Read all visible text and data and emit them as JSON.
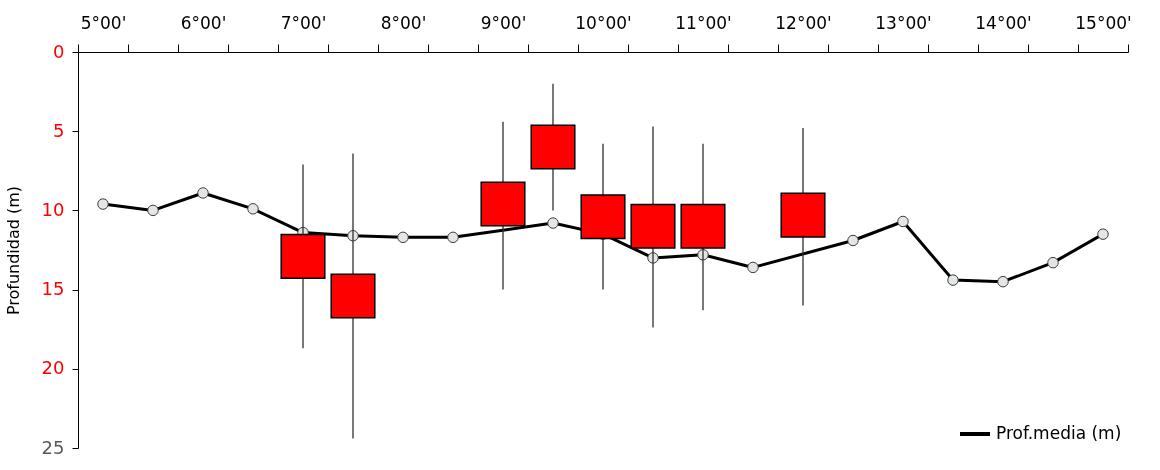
{
  "chart_data": {
    "type": "line",
    "ylabel": "Profundidad (m)",
    "categories": [
      "5°00'",
      null,
      "6°00'",
      null,
      "7°00'",
      null,
      "8°00'",
      null,
      "9°00'",
      null,
      "10°00'",
      null,
      "11°00'",
      null,
      "12°00'",
      null,
      "13°00'",
      null,
      "14°00'",
      null,
      "15°00'"
    ],
    "ylim": [
      25,
      0
    ],
    "yticks": [
      0,
      5,
      10,
      15,
      20,
      25
    ],
    "grid": false,
    "legend": "bottom right",
    "series": [
      {
        "name": "Prof.media (m)",
        "color": "#000000",
        "marker": "circle",
        "line_style": "solid",
        "values": [
          9.6,
          10.0,
          8.9,
          9.9,
          11.4,
          11.6,
          11.7,
          11.7,
          null,
          10.8,
          11.5,
          13.0,
          12.8,
          13.6,
          null,
          11.9,
          10.7,
          14.4,
          14.5,
          13.3,
          11.5
        ]
      },
      {
        "type": "scatter",
        "color": "#ff0000",
        "marker": "square",
        "values": [
          null,
          null,
          null,
          null,
          12.9,
          15.4,
          null,
          null,
          9.6,
          6.0,
          10.4,
          11.0,
          11.0,
          null,
          10.3,
          null,
          null,
          null,
          null,
          null,
          null
        ],
        "errors": [
          null,
          null,
          null,
          null,
          [
            7.1,
            18.7
          ],
          [
            6.4,
            24.4
          ],
          null,
          null,
          [
            4.4,
            15.0
          ],
          [
            2.0,
            10.0
          ],
          [
            5.8,
            15.0
          ],
          [
            4.7,
            17.4
          ],
          [
            5.8,
            16.3
          ],
          null,
          [
            4.8,
            16.0
          ],
          null,
          null,
          null,
          null,
          null,
          null
        ]
      }
    ]
  }
}
